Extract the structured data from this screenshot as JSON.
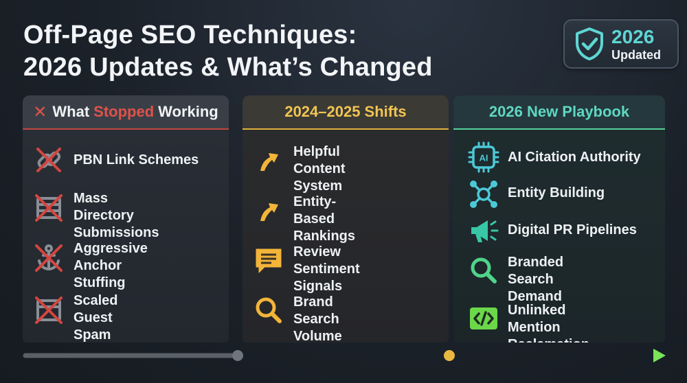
{
  "title": {
    "line1": "Off-Page SEO Techniques:",
    "line2": "2026 Updates & What’s Changed"
  },
  "badge": {
    "year": "2026",
    "label": "Updated",
    "icon": "shield-check-icon"
  },
  "columns": [
    {
      "title_prefix": "What",
      "title_highlight": "Stopped",
      "title_suffix": "Working",
      "accent": "#e0524a",
      "items": [
        {
          "label": "PBN Link Schemes",
          "icon": "crossed-chain-link-icon"
        },
        {
          "label": "Mass Directory\nSubmissions",
          "icon": "crossed-directory-icon"
        },
        {
          "label": "Aggressive Anchor\nStuffing",
          "icon": "crossed-anchor-icon"
        },
        {
          "label": "Scaled Guest\nSpam —",
          "icon": "crossed-document-icon"
        }
      ]
    },
    {
      "title": "2024–2025 Shifts",
      "accent": "#f2c552",
      "items": [
        {
          "label": "Helpful Content\nSystem",
          "icon": "arrow-up-right-icon"
        },
        {
          "label": "Entity-Based\nRankings",
          "icon": "arrow-up-right-icon"
        },
        {
          "label": "Review Sentiment\nSignals",
          "icon": "chat-bubble-icon"
        },
        {
          "label": "Brand Search\nVolume —",
          "icon": "search-icon"
        }
      ]
    },
    {
      "title": "2026 New Playbook",
      "accent": "#5fd7c2",
      "items": [
        {
          "label": "AI Citation Authority",
          "icon": "ai-chip-icon"
        },
        {
          "label": "Entity Building",
          "icon": "network-nodes-icon"
        },
        {
          "label": "Digital PR Pipelines",
          "icon": "megaphone-icon"
        },
        {
          "label": "Branded Search\nDemand",
          "icon": "search-icon"
        },
        {
          "label": "Unlinked Mention\nReclamation —",
          "icon": "code-icon"
        }
      ]
    }
  ],
  "colors": {
    "red": "#e0524a",
    "gold": "#f2c552",
    "teal": "#5fd7c2",
    "green": "#7be35a"
  }
}
